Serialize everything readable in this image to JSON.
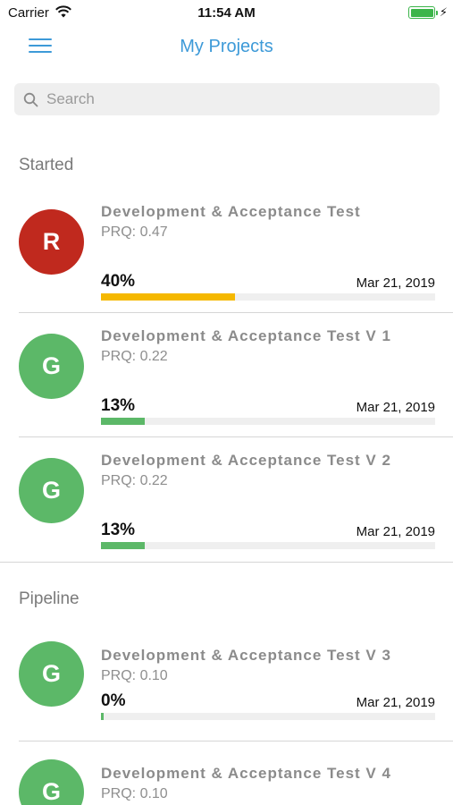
{
  "status_bar": {
    "carrier": "Carrier",
    "time": "11:54 AM",
    "battery_level": 1.0
  },
  "nav": {
    "title": "My Projects"
  },
  "search": {
    "placeholder": "Search"
  },
  "sections": [
    {
      "label": "Started",
      "projects": [
        {
          "initial": "R",
          "avatar_color": "#c0291e",
          "title": "Development & Acceptance Test",
          "prq": "PRQ: 0.47",
          "percent_label": "40%",
          "progress": 0.4,
          "bar_color": "#f5b800",
          "date": "Mar 21, 2019"
        },
        {
          "initial": "G",
          "avatar_color": "#5cb868",
          "title": "Development & Acceptance Test V 1",
          "prq": "PRQ: 0.22",
          "percent_label": "13%",
          "progress": 0.13,
          "bar_color": "#5cb868",
          "date": "Mar 21, 2019"
        },
        {
          "initial": "G",
          "avatar_color": "#5cb868",
          "title": "Development & Acceptance Test V 2",
          "prq": "PRQ: 0.22",
          "percent_label": "13%",
          "progress": 0.13,
          "bar_color": "#5cb868",
          "date": "Mar 21, 2019"
        }
      ]
    },
    {
      "label": "Pipeline",
      "projects": [
        {
          "initial": "G",
          "avatar_color": "#5cb868",
          "title": "Development & Acceptance Test V 3",
          "prq": "PRQ: 0.10",
          "percent_label": "0%",
          "progress": 0.0,
          "bar_color": "#5cb868",
          "date": "Mar 21, 2019"
        },
        {
          "initial": "G",
          "avatar_color": "#5cb868",
          "title": "Development & Acceptance Test V 4",
          "prq": "PRQ: 0.10",
          "percent_label": "",
          "progress": 0.0,
          "bar_color": "#5cb868",
          "date": ""
        }
      ]
    }
  ]
}
